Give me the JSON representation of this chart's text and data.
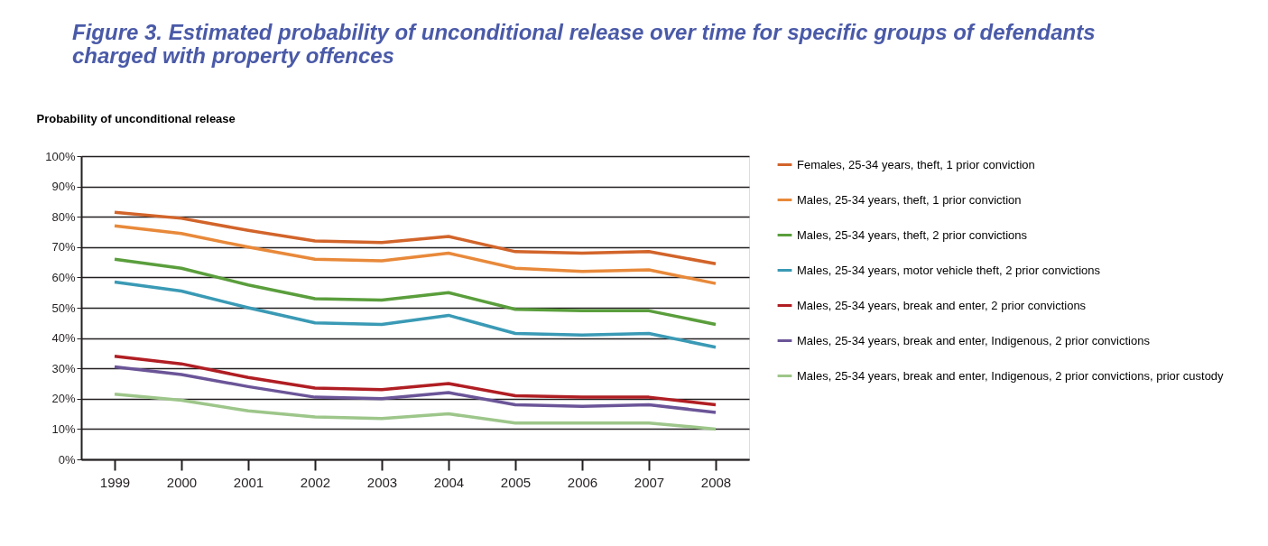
{
  "chart_data": {
    "type": "line",
    "title": [
      "Figure 3.  Estimated probability of unconditional release over time for specific groups of defendants",
      "charged with property offences"
    ],
    "ylabel": "Probability of unconditional release",
    "categories": [
      "1999",
      "2000",
      "2001",
      "2002",
      "2003",
      "2004",
      "2005",
      "2006",
      "2007",
      "2008"
    ],
    "ylim": [
      0,
      100
    ],
    "yticks": [
      {
        "value": 0,
        "label": "0%"
      },
      {
        "value": 10,
        "label": "10%"
      },
      {
        "value": 20,
        "label": "20%"
      },
      {
        "value": 30,
        "label": "30%"
      },
      {
        "value": 40,
        "label": "40%"
      },
      {
        "value": 50,
        "label": "50%"
      },
      {
        "value": 60,
        "label": "60%"
      },
      {
        "value": 70,
        "label": "70%"
      },
      {
        "value": 80,
        "label": "80%"
      },
      {
        "value": 90,
        "label": "90%"
      },
      {
        "value": 100,
        "label": "100%"
      }
    ],
    "grid": "y",
    "legend": "right",
    "marker": "none",
    "line_style": "solid",
    "series": [
      {
        "name": "Females, 25-34 years, theft, 1 prior conviction",
        "color": "#d2642a",
        "values": [
          81.5,
          79.5,
          75.5,
          72,
          71.5,
          73.5,
          68.5,
          68,
          68.5,
          64.5
        ]
      },
      {
        "name": "Males, 25-34 years, theft, 1 prior conviction",
        "color": "#e8893a",
        "values": [
          77,
          74.5,
          70,
          66,
          65.5,
          68,
          63,
          62,
          62.5,
          58
        ]
      },
      {
        "name": "Males, 25-34 years, theft, 2 prior convictions",
        "color": "#5a9e3c",
        "values": [
          66,
          63,
          57.5,
          53,
          52.5,
          55,
          49.5,
          49,
          49,
          44.5
        ]
      },
      {
        "name": "Males, 25-34 years, motor vehicle theft, 2 prior convictions",
        "color": "#3a9ab5",
        "values": [
          58.5,
          55.5,
          50,
          45,
          44.5,
          47.5,
          41.5,
          41,
          41.5,
          37
        ]
      },
      {
        "name": "Males, 25-34 years, break and enter, 2 prior convictions",
        "color": "#b01e23",
        "values": [
          34,
          31.5,
          27,
          23.5,
          23,
          25,
          21,
          20.5,
          20.5,
          18
        ]
      },
      {
        "name": "Males, 25-34 years, break and enter, Indigenous, 2 prior convictions",
        "color": "#6b5598",
        "values": [
          30.5,
          28,
          24,
          20.5,
          20,
          22,
          18,
          17.5,
          18,
          15.5
        ]
      },
      {
        "name": "Males, 25-34 years, break and enter, Indigenous, 2 prior convictions, prior custody",
        "color": "#9dc68a",
        "values": [
          21.5,
          19.5,
          16,
          14,
          13.5,
          15,
          12,
          12,
          12,
          10
        ]
      }
    ]
  }
}
